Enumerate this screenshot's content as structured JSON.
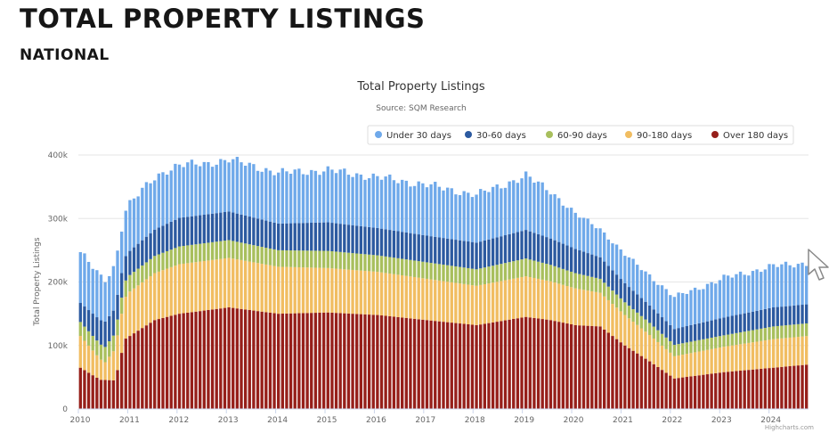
{
  "page": {
    "title": "TOTAL PROPERTY LISTINGS",
    "subtitle": "NATIONAL"
  },
  "colors": {
    "under30": "#6fa9ea",
    "d30_60": "#2c5aa0",
    "d60_90": "#a8bf5d",
    "d90_180": "#f1bd61",
    "over180": "#961f1a",
    "grid": "#e6e6e6",
    "axis": "#ccd6eb"
  },
  "chart_data": {
    "type": "bar",
    "stacked": true,
    "title": "Total Property Listings",
    "subtitle": "Source: SQM Research",
    "ylabel": "Total Property Listings",
    "ylim": [
      0,
      400000
    ],
    "yticks": [
      0,
      100000,
      200000,
      300000,
      400000
    ],
    "ytick_labels": [
      "0",
      "100k",
      "200k",
      "300k",
      "400k"
    ],
    "xlim": [
      2010.0,
      2024.8
    ],
    "xticks": [
      2010,
      2011,
      2012,
      2013,
      2014,
      2015,
      2016,
      2017,
      2018,
      2019,
      2020,
      2021,
      2022,
      2023,
      2024
    ],
    "xtick_labels": [
      "2010",
      "2011",
      "2012",
      "2013",
      "2014",
      "2015",
      "2016",
      "2017",
      "2018",
      "2019",
      "2020",
      "2021",
      "2022",
      "2023",
      "2024"
    ],
    "x_start": "2010-01",
    "x_end": "2024-09",
    "interval": "monthly",
    "legend_position": "top-right",
    "grid": true,
    "credits": "Highcharts.com",
    "series": [
      {
        "name": "Under 30 days",
        "color_key": "under30",
        "anchors": [
          [
            2010.0,
            80000
          ],
          [
            2010.5,
            65000
          ],
          [
            2011.0,
            75000
          ],
          [
            2011.75,
            85000
          ],
          [
            2012.5,
            80000
          ],
          [
            2013.0,
            82000
          ],
          [
            2014.0,
            80000
          ],
          [
            2015.0,
            82000
          ],
          [
            2016.0,
            80000
          ],
          [
            2017.0,
            80000
          ],
          [
            2018.0,
            75000
          ],
          [
            2019.0,
            85000
          ],
          [
            2019.5,
            75000
          ],
          [
            2020.0,
            55000
          ],
          [
            2020.5,
            45000
          ],
          [
            2021.0,
            45000
          ],
          [
            2022.0,
            50000
          ],
          [
            2023.0,
            62000
          ],
          [
            2024.0,
            65000
          ],
          [
            2024.7,
            65000
          ]
        ]
      },
      {
        "name": "30-60 days",
        "color_key": "d30_60",
        "anchors": [
          [
            2010.0,
            30000
          ],
          [
            2010.5,
            40000
          ],
          [
            2011.0,
            38000
          ],
          [
            2012.0,
            45000
          ],
          [
            2013.0,
            45000
          ],
          [
            2014.0,
            42000
          ],
          [
            2015.0,
            45000
          ],
          [
            2016.0,
            43000
          ],
          [
            2017.0,
            42000
          ],
          [
            2018.0,
            42000
          ],
          [
            2019.0,
            45000
          ],
          [
            2020.0,
            38000
          ],
          [
            2021.0,
            30000
          ],
          [
            2022.0,
            25000
          ],
          [
            2023.0,
            28000
          ],
          [
            2024.0,
            30000
          ],
          [
            2024.7,
            30000
          ]
        ]
      },
      {
        "name": "60-90 days",
        "color_key": "d60_90",
        "anchors": [
          [
            2010.0,
            22000
          ],
          [
            2010.5,
            24000
          ],
          [
            2011.0,
            26000
          ],
          [
            2012.0,
            28000
          ],
          [
            2013.0,
            28000
          ],
          [
            2014.0,
            26000
          ],
          [
            2015.0,
            27000
          ],
          [
            2016.0,
            26000
          ],
          [
            2017.0,
            26000
          ],
          [
            2018.0,
            26000
          ],
          [
            2019.0,
            28000
          ],
          [
            2020.0,
            24000
          ],
          [
            2021.0,
            20000
          ],
          [
            2022.0,
            18000
          ],
          [
            2023.0,
            18000
          ],
          [
            2024.0,
            20000
          ],
          [
            2024.7,
            20000
          ]
        ]
      },
      {
        "name": "90-180 days",
        "color_key": "d90_180",
        "anchors": [
          [
            2010.0,
            50000
          ],
          [
            2010.5,
            28000
          ],
          [
            2010.8,
            60000
          ],
          [
            2011.0,
            70000
          ],
          [
            2012.0,
            78000
          ],
          [
            2013.0,
            78000
          ],
          [
            2014.0,
            74000
          ],
          [
            2015.0,
            70000
          ],
          [
            2016.0,
            68000
          ],
          [
            2017.0,
            65000
          ],
          [
            2018.0,
            62000
          ],
          [
            2019.0,
            64000
          ],
          [
            2020.0,
            58000
          ],
          [
            2021.0,
            48000
          ],
          [
            2022.0,
            35000
          ],
          [
            2023.0,
            40000
          ],
          [
            2024.0,
            45000
          ],
          [
            2024.7,
            45000
          ]
        ]
      },
      {
        "name": "Over 180 days",
        "color_key": "over180",
        "anchors": [
          [
            2010.0,
            65000
          ],
          [
            2010.4,
            46000
          ],
          [
            2010.7,
            45000
          ],
          [
            2010.9,
            110000
          ],
          [
            2011.5,
            140000
          ],
          [
            2012.0,
            150000
          ],
          [
            2013.0,
            160000
          ],
          [
            2014.0,
            150000
          ],
          [
            2015.0,
            152000
          ],
          [
            2016.0,
            148000
          ],
          [
            2017.0,
            140000
          ],
          [
            2018.0,
            132000
          ],
          [
            2019.0,
            145000
          ],
          [
            2019.5,
            140000
          ],
          [
            2020.0,
            132000
          ],
          [
            2020.5,
            130000
          ],
          [
            2021.0,
            100000
          ],
          [
            2021.5,
            75000
          ],
          [
            2022.0,
            48000
          ],
          [
            2023.0,
            58000
          ],
          [
            2024.0,
            65000
          ],
          [
            2024.7,
            70000
          ]
        ]
      }
    ]
  }
}
